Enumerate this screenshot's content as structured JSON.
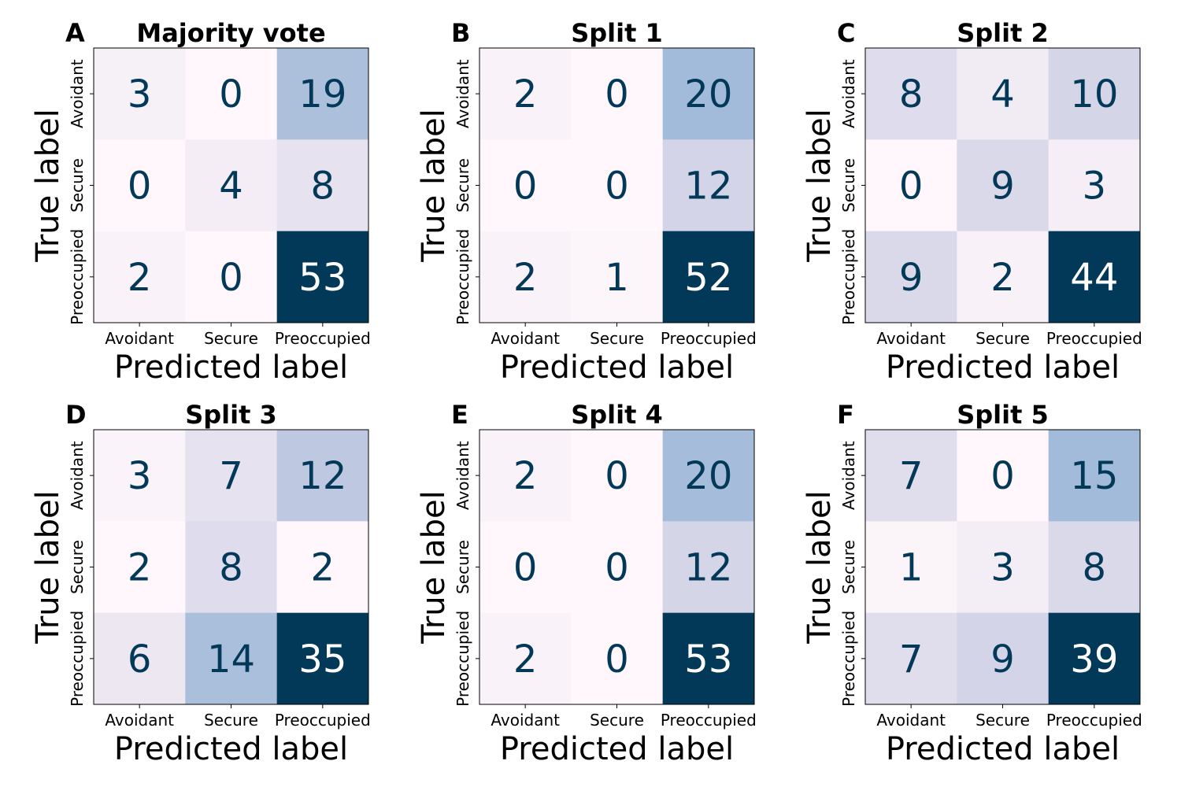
{
  "chart_data": [
    {
      "type": "heatmap",
      "panel": "A",
      "title": "Majority vote",
      "xlabel": "Predicted label",
      "ylabel": "True label",
      "x_categories": [
        "Avoidant",
        "Secure",
        "Preoccupied"
      ],
      "y_categories": [
        "Avoidant",
        "Secure",
        "Preoccupied"
      ],
      "values": [
        [
          3,
          0,
          19
        ],
        [
          0,
          4,
          8
        ],
        [
          2,
          0,
          53
        ]
      ]
    },
    {
      "type": "heatmap",
      "panel": "B",
      "title": "Split 1",
      "xlabel": "Predicted label",
      "ylabel": "True label",
      "x_categories": [
        "Avoidant",
        "Secure",
        "Preoccupied"
      ],
      "y_categories": [
        "Avoidant",
        "Secure",
        "Preoccupied"
      ],
      "values": [
        [
          2,
          0,
          20
        ],
        [
          0,
          0,
          12
        ],
        [
          2,
          1,
          52
        ]
      ]
    },
    {
      "type": "heatmap",
      "panel": "C",
      "title": "Split 2",
      "xlabel": "Predicted label",
      "ylabel": "True label",
      "x_categories": [
        "Avoidant",
        "Secure",
        "Preoccupied"
      ],
      "y_categories": [
        "Avoidant",
        "Secure",
        "Preoccupied"
      ],
      "values": [
        [
          8,
          4,
          10
        ],
        [
          0,
          9,
          3
        ],
        [
          9,
          2,
          44
        ]
      ]
    },
    {
      "type": "heatmap",
      "panel": "D",
      "title": "Split 3",
      "xlabel": "Predicted label",
      "ylabel": "True label",
      "x_categories": [
        "Avoidant",
        "Secure",
        "Preoccupied"
      ],
      "y_categories": [
        "Avoidant",
        "Secure",
        "Preoccupied"
      ],
      "values": [
        [
          3,
          7,
          12
        ],
        [
          2,
          8,
          2
        ],
        [
          6,
          14,
          35
        ]
      ]
    },
    {
      "type": "heatmap",
      "panel": "E",
      "title": "Split 4",
      "xlabel": "Predicted label",
      "ylabel": "True label",
      "x_categories": [
        "Avoidant",
        "Secure",
        "Preoccupied"
      ],
      "y_categories": [
        "Avoidant",
        "Secure",
        "Preoccupied"
      ],
      "values": [
        [
          2,
          0,
          20
        ],
        [
          0,
          0,
          12
        ],
        [
          2,
          0,
          53
        ]
      ]
    },
    {
      "type": "heatmap",
      "panel": "F",
      "title": "Split 5",
      "xlabel": "Predicted label",
      "ylabel": "True label",
      "x_categories": [
        "Avoidant",
        "Secure",
        "Preoccupied"
      ],
      "y_categories": [
        "Avoidant",
        "Secure",
        "Preoccupied"
      ],
      "values": [
        [
          7,
          0,
          15
        ],
        [
          1,
          3,
          8
        ],
        [
          7,
          9,
          39
        ]
      ]
    }
  ],
  "colormap": {
    "name": "PuBu",
    "stops": [
      "#fff7fb",
      "#ece7f2",
      "#d0d1e6",
      "#a6bddb",
      "#74a9cf",
      "#3690c0",
      "#0570b0",
      "#045a8d",
      "#023858"
    ],
    "text_dark": "#023858",
    "text_light": "#ffffff"
  }
}
